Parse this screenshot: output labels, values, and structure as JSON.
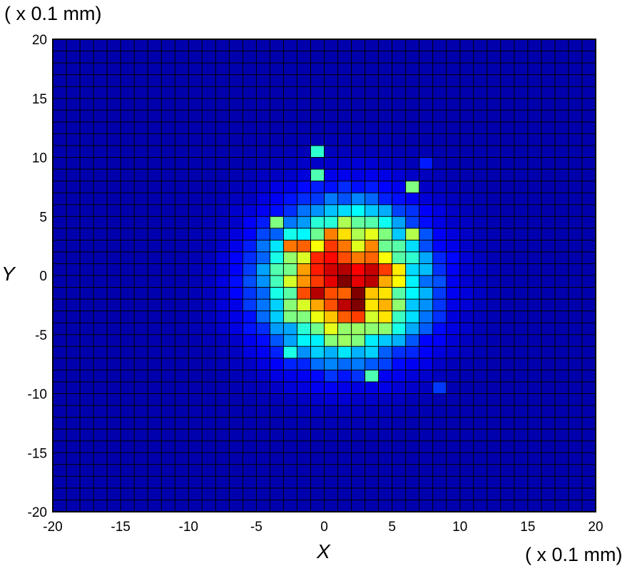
{
  "chart_data": {
    "type": "heatmap",
    "title": "",
    "xlabel": "X",
    "ylabel": "Y",
    "x_unit": "( x 0.1 mm)",
    "y_unit": "( x 0.1 mm)",
    "xlim": [
      -20,
      20
    ],
    "ylim": [
      -20,
      20
    ],
    "xticks": [
      "-20",
      "-15",
      "-10",
      "-5",
      "0",
      "5",
      "10",
      "15",
      "20"
    ],
    "yticks": [
      "20",
      "15",
      "10",
      "5",
      "0",
      "-5",
      "-10",
      "-15",
      "-20"
    ],
    "bin_size": 1,
    "colormap": "jet",
    "grid": true,
    "color_range": [
      0,
      1
    ],
    "peak": {
      "x": 1.5,
      "y": -0.5
    },
    "cells": [
      {
        "x": 0.5,
        "y": 0.5,
        "v": 0.92
      },
      {
        "x": 1.5,
        "y": 0.5,
        "v": 0.95
      },
      {
        "x": 2.5,
        "y": 0.5,
        "v": 0.88
      },
      {
        "x": -0.5,
        "y": 0.5,
        "v": 0.85
      },
      {
        "x": 0.5,
        "y": -0.5,
        "v": 0.9
      },
      {
        "x": 1.5,
        "y": -0.5,
        "v": 1.0
      },
      {
        "x": 2.5,
        "y": -0.5,
        "v": 0.9
      },
      {
        "x": -0.5,
        "y": -0.5,
        "v": 0.82
      },
      {
        "x": 0.5,
        "y": 1.5,
        "v": 0.87
      },
      {
        "x": -0.5,
        "y": 1.5,
        "v": 0.84
      },
      {
        "x": 0.5,
        "y": 2.5,
        "v": 0.82
      },
      {
        "x": 0.5,
        "y": 3.5,
        "v": 0.75
      },
      {
        "x": 1.5,
        "y": 1.5,
        "v": 0.8
      },
      {
        "x": -1.5,
        "y": -1.5,
        "v": 0.8
      },
      {
        "x": 0.5,
        "y": -1.5,
        "v": 0.8
      },
      {
        "x": 1.5,
        "y": -1.5,
        "v": 0.78
      },
      {
        "x": -1.5,
        "y": 0.5,
        "v": 0.72
      },
      {
        "x": -1.5,
        "y": 2.5,
        "v": 0.78
      },
      {
        "x": -2.5,
        "y": 2.5,
        "v": 0.76
      },
      {
        "x": 3.5,
        "y": -2.5,
        "v": 0.65
      },
      {
        "x": 4.5,
        "y": -3.5,
        "v": 0.65
      },
      {
        "x": 8.0,
        "y": -10.0,
        "v": 0.18
      },
      {
        "x": 7.0,
        "y": 9.0,
        "v": 0.15
      },
      {
        "x": 6.5,
        "y": 7.5,
        "v": 0.5
      },
      {
        "x": 3.5,
        "y": -8.5,
        "v": 0.45
      },
      {
        "x": -0.5,
        "y": 10.5,
        "v": 0.42
      },
      {
        "x": -0.5,
        "y": 8.5,
        "v": 0.45
      },
      {
        "x": -2.5,
        "y": -6.5,
        "v": 0.4
      },
      {
        "x": -3.5,
        "y": 4.5,
        "v": 0.5
      },
      {
        "x": 6.5,
        "y": 3.5,
        "v": 0.55
      }
    ]
  }
}
